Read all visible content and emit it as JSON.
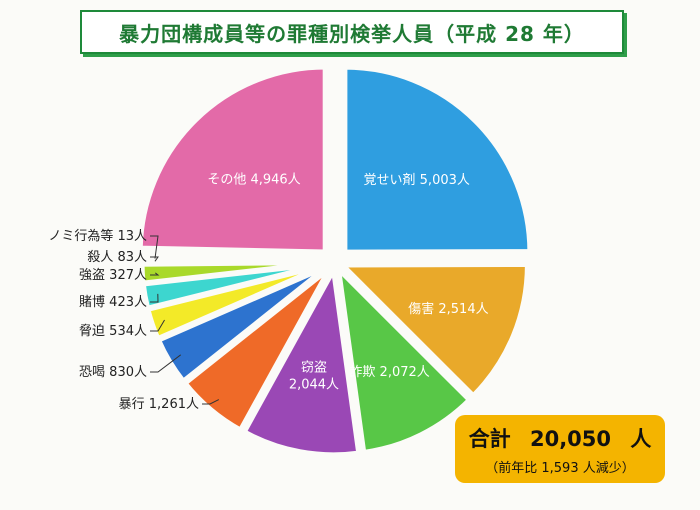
{
  "title": "暴力団構成員等の罪種別検挙人員（平成 28 年）",
  "chart_data": {
    "type": "pie",
    "unit": "人",
    "slices": [
      {
        "label": "覚せい剤",
        "value": 5003,
        "value_text": "5,003人",
        "color": "#2f9ee0"
      },
      {
        "label": "傷害",
        "value": 2514,
        "value_text": "2,514人",
        "color": "#e9a92a"
      },
      {
        "label": "詐欺",
        "value": 2072,
        "value_text": "2,072人",
        "color": "#58c747"
      },
      {
        "label": "窃盗",
        "value": 2044,
        "value_text": "2,044人",
        "color": "#9a48b5"
      },
      {
        "label": "暴行",
        "value": 1261,
        "value_text": "1,261人",
        "color": "#ef6a28"
      },
      {
        "label": "恐喝",
        "value": 830,
        "value_text": "830人",
        "color": "#2d73cf"
      },
      {
        "label": "脅迫",
        "value": 534,
        "value_text": "534人",
        "color": "#f3ea28"
      },
      {
        "label": "賭博",
        "value": 423,
        "value_text": "423人",
        "color": "#3dd6cf"
      },
      {
        "label": "強盗",
        "value": 327,
        "value_text": "327人",
        "color": "#a9d92a"
      },
      {
        "label": "殺人",
        "value": 83,
        "value_text": "83人",
        "color": "#e63b2e"
      },
      {
        "label": "ノミ行為等",
        "value": 13,
        "value_text": "13人",
        "color": "#2b4aa0"
      },
      {
        "label": "その他",
        "value": 4946,
        "value_text": "4,946人",
        "color": "#e36aa8"
      }
    ]
  },
  "total": {
    "label": "合計",
    "value": "20,050",
    "unit": "人",
    "note": "（前年比 1,593 人減少）"
  }
}
